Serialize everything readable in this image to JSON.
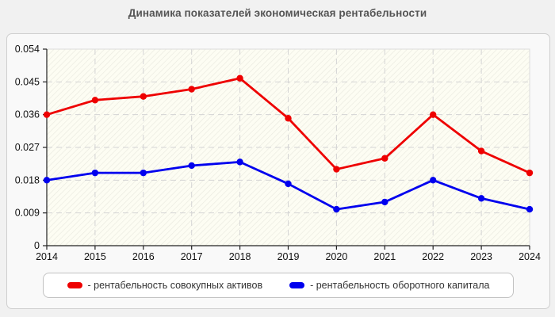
{
  "page_title": "Динамика показателей экономическая рентабельности",
  "colors": {
    "page_background": "#f1f1f1",
    "panel_background": "#f9f9f9",
    "plot_background": "#fdfdf3",
    "gridline": "#d4d4d4",
    "axis": "#222222",
    "title_text": "#555555",
    "series_red": "#ee0000",
    "series_blue": "#0000ee"
  },
  "legend": {
    "items": [
      {
        "label": "- рентабельность совокупных активов",
        "color": "#ee0000",
        "icon": "red-pill-swatch"
      },
      {
        "label": "- рентабельность оборотного капитала",
        "color": "#0000ee",
        "icon": "blue-pill-swatch"
      }
    ]
  },
  "chart_data": {
    "type": "line",
    "title": "Динамика показателей экономическая рентабельности",
    "x": [
      2014,
      2015,
      2016,
      2017,
      2018,
      2019,
      2020,
      2021,
      2022,
      2023,
      2024
    ],
    "series": [
      {
        "name": "рентабельность совокупных активов",
        "color": "#ee0000",
        "values": [
          0.036,
          0.04,
          0.041,
          0.043,
          0.046,
          0.035,
          0.021,
          0.024,
          0.036,
          0.026,
          0.02
        ]
      },
      {
        "name": "рентабельность оборотного капитала",
        "color": "#0000ee",
        "values": [
          0.018,
          0.02,
          0.02,
          0.022,
          0.023,
          0.017,
          0.01,
          0.012,
          0.018,
          0.013,
          0.01
        ]
      }
    ],
    "xlabel": "",
    "ylabel": "",
    "ylim": [
      0,
      0.054
    ],
    "yticks": [
      0,
      0.009,
      0.018,
      0.027,
      0.036,
      0.045,
      0.054
    ],
    "ytick_labels": [
      "0",
      "0.009",
      "0.018",
      "0.027",
      "0.036",
      "0.045",
      "0.054"
    ],
    "grid": true,
    "grid_style": "dashed",
    "legend_position": "bottom",
    "marker": "circle"
  }
}
